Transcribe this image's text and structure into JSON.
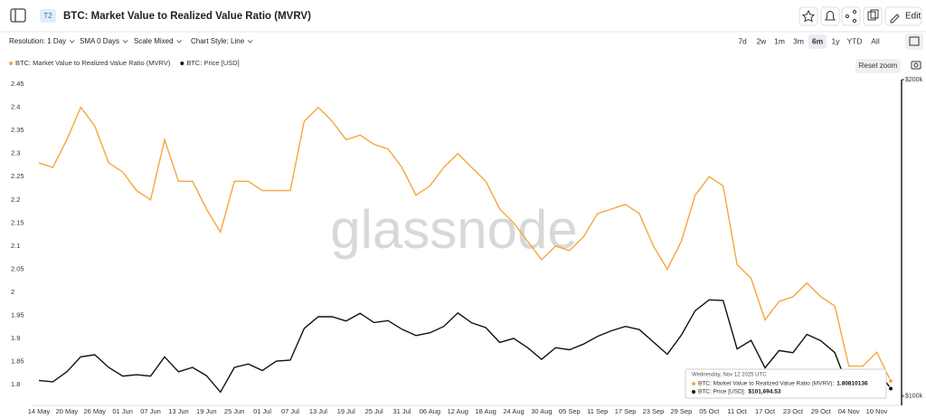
{
  "header": {
    "badge": "T2",
    "title": "BTC: Market Value to Realized Value Ratio (MVRV)",
    "edit": "Edit"
  },
  "controls": {
    "dropdowns": [
      "Resolution: 1 Day",
      "SMA 0 Days",
      "Scale Mixed",
      "Chart Style: Line"
    ],
    "ranges": [
      "7d",
      "2w",
      "1m",
      "3m",
      "6m",
      "1y",
      "YTD",
      "All"
    ],
    "active_range": 4,
    "reset": "Reset zoom"
  },
  "chart_data": {
    "type": "line",
    "watermark": "glassnode",
    "categories": [
      "14 May",
      null,
      "20 May",
      null,
      "26 May",
      null,
      "01 Jun",
      null,
      "07 Jun",
      null,
      "13 Jun",
      null,
      "19 Jun",
      null,
      "25 Jun",
      null,
      "01 Jul",
      null,
      "07 Jul",
      null,
      "13 Jul",
      null,
      "19 Jul",
      null,
      "25 Jul",
      null,
      "31 Jul",
      null,
      "06 Aug",
      null,
      "12 Aug",
      null,
      "18 Aug",
      null,
      "24 Aug",
      null,
      "30 Aug",
      null,
      "05 Sep",
      null,
      "11 Sep",
      null,
      "17 Sep",
      null,
      "23 Sep",
      null,
      "29 Sep",
      null,
      "05 Oct",
      null,
      "11 Oct",
      null,
      "17 Oct",
      null,
      "23 Oct",
      null,
      "29 Oct",
      null,
      "04 Nov",
      null,
      "10 Nov",
      null
    ],
    "series": [
      {
        "name": "BTC: Market Value to Realized Value Ratio (MVRV)",
        "color": "#f5a63c",
        "values": [
          2.28,
          2.27,
          2.33,
          2.4,
          2.36,
          2.28,
          2.26,
          2.22,
          2.2,
          2.33,
          2.24,
          2.24,
          2.18,
          2.13,
          2.24,
          2.24,
          2.22,
          2.22,
          2.22,
          2.37,
          2.4,
          2.37,
          2.33,
          2.34,
          2.32,
          2.31,
          2.27,
          2.21,
          2.23,
          2.27,
          2.3,
          2.27,
          2.24,
          2.18,
          2.15,
          2.11,
          2.07,
          2.1,
          2.09,
          2.12,
          2.17,
          2.18,
          2.19,
          2.17,
          2.1,
          2.05,
          2.11,
          2.21,
          2.25,
          2.23,
          2.06,
          2.03,
          1.94,
          1.98,
          1.99,
          2.02,
          1.99,
          1.97,
          1.84,
          1.84,
          1.87,
          1.80810136
        ]
      },
      {
        "name": "BTC: Price [USD]",
        "color": "#111111",
        "axis": "y2",
        "values": [
          103500,
          103200,
          105500,
          109000,
          109500,
          106500,
          104500,
          104800,
          104500,
          109000,
          105500,
          106500,
          104600,
          100900,
          106500,
          107300,
          105800,
          108000,
          108200,
          116000,
          119000,
          119000,
          117900,
          119900,
          117500,
          118000,
          115800,
          114200,
          114900,
          116500,
          120000,
          117400,
          116200,
          112500,
          113500,
          111200,
          108400,
          111200,
          110700,
          112100,
          114000,
          115400,
          116500,
          115700,
          112600,
          109600,
          114300,
          120600,
          123500,
          123300,
          110900,
          113000,
          106400,
          110500,
          110000,
          114500,
          112900,
          110000,
          101500,
          103200,
          106000,
          101694.53
        ]
      }
    ],
    "ylim": [
      1.755,
      2.46
    ],
    "yticks": [
      1.8,
      1.85,
      1.9,
      1.95,
      2,
      2.05,
      2.1,
      2.15,
      2.2,
      2.25,
      2.3,
      2.35,
      2.4,
      2.45
    ],
    "y2lim": [
      98000,
      200000
    ],
    "y2_log": true,
    "y2ticks": [
      {
        "value": 100000,
        "label": "$100k"
      },
      {
        "value": 200000,
        "label": "$200k"
      }
    ],
    "grid": false,
    "tooltip": {
      "date": "Wednesday, Nov 12 2025 UTC",
      "rows": [
        {
          "label": "BTC: Market Value to Realized Value Ratio (MVRV):",
          "value": 1.80810136
        },
        {
          "label": "BTC: Price [USD]:",
          "value": 101694.53,
          "value_label": "$101,694.53"
        }
      ]
    }
  }
}
